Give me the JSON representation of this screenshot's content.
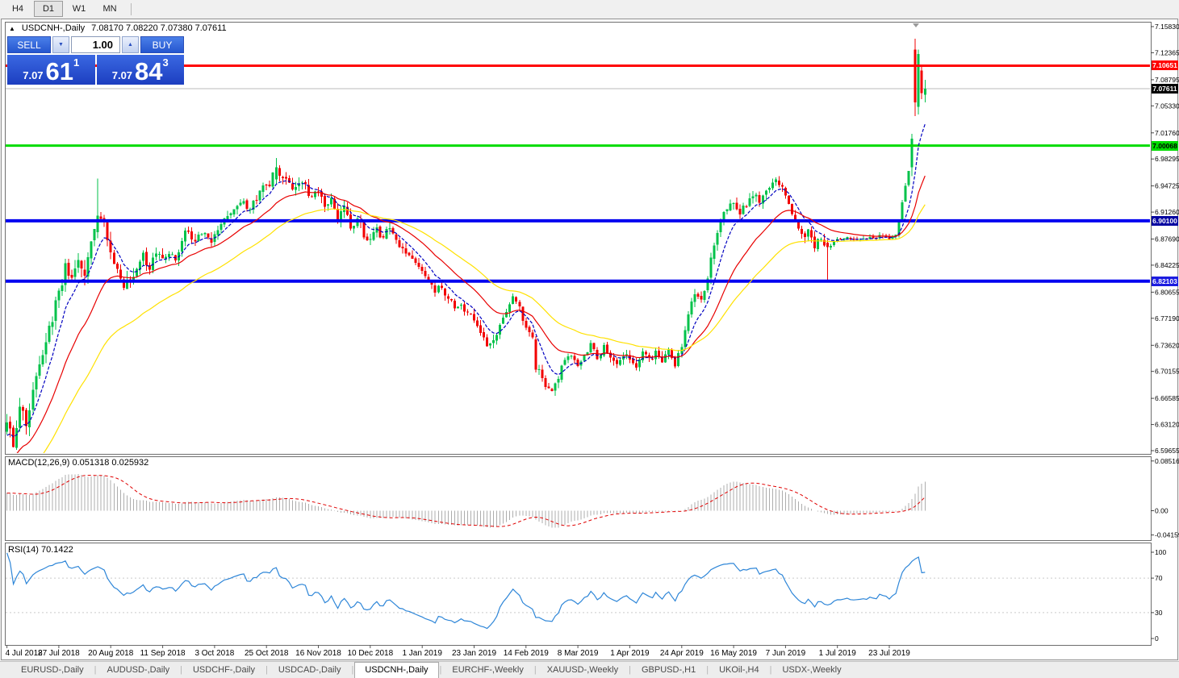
{
  "toolbar": {
    "timeframes": [
      {
        "label": "H4",
        "active": false
      },
      {
        "label": "D1",
        "active": true
      },
      {
        "label": "W1",
        "active": false
      },
      {
        "label": "MN",
        "active": false
      }
    ]
  },
  "chart": {
    "collapse_icon": "▲",
    "title_symbol": "USDCNH-,Daily",
    "title_ohlc": "7.08170 7.08220 7.07380 7.07611"
  },
  "trade_panel": {
    "sell_label": "SELL",
    "buy_label": "BUY",
    "volume": "1.00",
    "spin_down_icon": "▼",
    "spin_up_icon": "▲",
    "sell_price": {
      "main": "7.07",
      "big": "61",
      "sup": "1"
    },
    "buy_price": {
      "main": "7.07",
      "big": "84",
      "sup": "3"
    }
  },
  "indicators": {
    "macd_label": "MACD(12,26,9) 0.051318 0.025932",
    "rsi_label": "RSI(14) 70.1422"
  },
  "price_axis": {
    "labels": [
      "7.15830",
      "7.12365",
      "7.08795",
      "7.05330",
      "7.01760",
      "6.98295",
      "6.94725",
      "6.91260",
      "6.87690",
      "6.84225",
      "6.80655",
      "6.77190",
      "6.73620",
      "6.70155",
      "6.66585",
      "6.63120",
      "6.59655"
    ],
    "badges": [
      {
        "value": "7.10651",
        "bg": "#FF0000",
        "fg": "#FFFFFF"
      },
      {
        "value": "7.07611",
        "bg": "#000000",
        "fg": "#FFFFFF"
      },
      {
        "value": "7.00068",
        "bg": "#00DC00",
        "fg": "#000000"
      },
      {
        "value": "6.90100",
        "bg": "#0000A0",
        "fg": "#FFFFFF"
      },
      {
        "value": "6.82103",
        "bg": "#1C1CE0",
        "fg": "#FFFFFF"
      }
    ]
  },
  "macd_axis": {
    "labels": [
      "0.085164",
      "0.00",
      "-0.04159"
    ]
  },
  "rsi_axis": {
    "labels": [
      "100",
      "70",
      "30",
      "0"
    ]
  },
  "date_axis": {
    "labels": [
      {
        "i": 0,
        "t": "4 Jul 2018"
      },
      {
        "i": 16,
        "t": "27 Jul 2018"
      },
      {
        "i": 32,
        "t": "20 Aug 2018"
      },
      {
        "i": 48,
        "t": "11 Sep 2018"
      },
      {
        "i": 64,
        "t": "3 Oct 2018"
      },
      {
        "i": 80,
        "t": "25 Oct 2018"
      },
      {
        "i": 96,
        "t": "16 Nov 2018"
      },
      {
        "i": 112,
        "t": "10 Dec 2018"
      },
      {
        "i": 128,
        "t": "1 Jan 2019"
      },
      {
        "i": 144,
        "t": "23 Jan 2019"
      },
      {
        "i": 160,
        "t": "14 Feb 2019"
      },
      {
        "i": 176,
        "t": "8 Mar 2019"
      },
      {
        "i": 192,
        "t": "1 Apr 2019"
      },
      {
        "i": 208,
        "t": "24 Apr 2019"
      },
      {
        "i": 224,
        "t": "16 May 2019"
      },
      {
        "i": 240,
        "t": "7 Jun 2019"
      },
      {
        "i": 256,
        "t": "1 Jul 2019"
      },
      {
        "i": 272,
        "t": "23 Jul 2019"
      }
    ]
  },
  "tabs": [
    {
      "label": "EURUSD-,Daily",
      "active": false
    },
    {
      "label": "AUDUSD-,Daily",
      "active": false
    },
    {
      "label": "USDCHF-,Daily",
      "active": false
    },
    {
      "label": "USDCAD-,Daily",
      "active": false
    },
    {
      "label": "USDCNH-,Daily",
      "active": true
    },
    {
      "label": "EURCHF-,Weekly",
      "active": false
    },
    {
      "label": "XAUUSD-,Weekly",
      "active": false
    },
    {
      "label": "GBPUSD-,H1",
      "active": false
    },
    {
      "label": "UKOil-,H4",
      "active": false
    },
    {
      "label": "USDX-,Weekly",
      "active": false
    }
  ],
  "chart_data": {
    "type": "candlestick",
    "title": "USDCNH-,Daily",
    "timeframe": "Daily",
    "y_axis": {
      "min": 6.59655,
      "max": 7.1583
    },
    "n_candles": 284,
    "candle_up_color": "#00C24A",
    "candle_down_color": "#F20000",
    "current_price": 7.07611,
    "current_price_line_color": "#BBBBBB",
    "levels": [
      {
        "price": 7.10651,
        "color": "#FF0000",
        "width": 3
      },
      {
        "price": 7.00068,
        "color": "#00DC00",
        "width": 3
      },
      {
        "price": 6.901,
        "color": "#0000F0",
        "width": 4
      },
      {
        "price": 6.82103,
        "color": "#0000F0",
        "width": 4
      }
    ],
    "moving_averages": [
      {
        "period": 8,
        "type": "ema",
        "color": "#0000C0",
        "dash": "4 2"
      },
      {
        "period": 22,
        "type": "ema",
        "color": "#E80000",
        "dash": ""
      },
      {
        "period": 45,
        "type": "ema",
        "color": "#FFE100",
        "dash": ""
      }
    ],
    "macd": {
      "fast": 12,
      "slow": 26,
      "signal": 9,
      "value": 0.051318,
      "signal_value": 0.025932,
      "hist_color": "#ADADAD",
      "signal_color": "#E00000",
      "range": [
        -0.04159,
        0.085164
      ]
    },
    "rsi": {
      "period": 14,
      "value": 70.1422,
      "color": "#2E86D8",
      "levels": [
        70,
        30
      ]
    },
    "close_anchors": [
      [
        0,
        6.64
      ],
      [
        2,
        6.606
      ],
      [
        4,
        6.662
      ],
      [
        6,
        6.634
      ],
      [
        9,
        6.69
      ],
      [
        12,
        6.745
      ],
      [
        14,
        6.775
      ],
      [
        16,
        6.802
      ],
      [
        18,
        6.838
      ],
      [
        20,
        6.822
      ],
      [
        22,
        6.852
      ],
      [
        24,
        6.834
      ],
      [
        26,
        6.87
      ],
      [
        28,
        6.905
      ],
      [
        30,
        6.893
      ],
      [
        32,
        6.86
      ],
      [
        34,
        6.838
      ],
      [
        36,
        6.812
      ],
      [
        38,
        6.824
      ],
      [
        40,
        6.842
      ],
      [
        42,
        6.856
      ],
      [
        44,
        6.836
      ],
      [
        46,
        6.858
      ],
      [
        48,
        6.846
      ],
      [
        50,
        6.862
      ],
      [
        52,
        6.848
      ],
      [
        54,
        6.876
      ],
      [
        56,
        6.89
      ],
      [
        58,
        6.872
      ],
      [
        60,
        6.888
      ],
      [
        63,
        6.872
      ],
      [
        66,
        6.902
      ],
      [
        69,
        6.916
      ],
      [
        72,
        6.928
      ],
      [
        75,
        6.918
      ],
      [
        78,
        6.938
      ],
      [
        81,
        6.952
      ],
      [
        83,
        6.97
      ],
      [
        85,
        6.958
      ],
      [
        88,
        6.944
      ],
      [
        91,
        6.956
      ],
      [
        93,
        6.934
      ],
      [
        96,
        6.942
      ],
      [
        98,
        6.918
      ],
      [
        100,
        6.93
      ],
      [
        102,
        6.902
      ],
      [
        104,
        6.916
      ],
      [
        106,
        6.892
      ],
      [
        108,
        6.906
      ],
      [
        110,
        6.884
      ],
      [
        112,
        6.876
      ],
      [
        114,
        6.888
      ],
      [
        116,
        6.88
      ],
      [
        118,
        6.892
      ],
      [
        120,
        6.878
      ],
      [
        122,
        6.862
      ],
      [
        124,
        6.856
      ],
      [
        126,
        6.844
      ],
      [
        128,
        6.836
      ],
      [
        130,
        6.824
      ],
      [
        132,
        6.806
      ],
      [
        134,
        6.816
      ],
      [
        136,
        6.796
      ],
      [
        138,
        6.786
      ],
      [
        140,
        6.794
      ],
      [
        142,
        6.776
      ],
      [
        144,
        6.772
      ],
      [
        146,
        6.752
      ],
      [
        148,
        6.734
      ],
      [
        150,
        6.742
      ],
      [
        152,
        6.76
      ],
      [
        154,
        6.782
      ],
      [
        156,
        6.8
      ],
      [
        158,
        6.788
      ],
      [
        160,
        6.758
      ],
      [
        162,
        6.742
      ],
      [
        164,
        6.706
      ],
      [
        166,
        6.678
      ],
      [
        168,
        6.672
      ],
      [
        170,
        6.696
      ],
      [
        172,
        6.714
      ],
      [
        174,
        6.722
      ],
      [
        176,
        6.712
      ],
      [
        178,
        6.726
      ],
      [
        180,
        6.736
      ],
      [
        182,
        6.72
      ],
      [
        184,
        6.732
      ],
      [
        186,
        6.722
      ],
      [
        188,
        6.714
      ],
      [
        190,
        6.722
      ],
      [
        192,
        6.718
      ],
      [
        194,
        6.708
      ],
      [
        196,
        6.726
      ],
      [
        198,
        6.716
      ],
      [
        200,
        6.728
      ],
      [
        202,
        6.714
      ],
      [
        204,
        6.728
      ],
      [
        206,
        6.708
      ],
      [
        208,
        6.734
      ],
      [
        210,
        6.774
      ],
      [
        212,
        6.806
      ],
      [
        214,
        6.792
      ],
      [
        216,
        6.826
      ],
      [
        218,
        6.868
      ],
      [
        220,
        6.898
      ],
      [
        222,
        6.918
      ],
      [
        224,
        6.928
      ],
      [
        226,
        6.912
      ],
      [
        228,
        6.924
      ],
      [
        230,
        6.936
      ],
      [
        232,
        6.928
      ],
      [
        234,
        6.944
      ],
      [
        237,
        6.956
      ],
      [
        239,
        6.944
      ],
      [
        241,
        6.928
      ],
      [
        243,
        6.898
      ],
      [
        245,
        6.88
      ],
      [
        247,
        6.886
      ],
      [
        249,
        6.868
      ],
      [
        251,
        6.88
      ],
      [
        253,
        6.866
      ],
      [
        255,
        6.874
      ],
      [
        258,
        6.88
      ],
      [
        261,
        6.874
      ],
      [
        264,
        6.88
      ],
      [
        267,
        6.876
      ],
      [
        270,
        6.882
      ],
      [
        272,
        6.878
      ],
      [
        274,
        6.885
      ],
      [
        275,
        6.9
      ],
      [
        276,
        6.925
      ],
      [
        277,
        6.948
      ],
      [
        278,
        6.968
      ],
      [
        279,
        7.01
      ],
      [
        280,
        7.058
      ],
      [
        281,
        7.122
      ],
      [
        282,
        7.07
      ],
      [
        283,
        7.076
      ]
    ],
    "explicit_candles": {
      "28": [
        6.886,
        6.957,
        6.878,
        6.908
      ],
      "83": [
        6.956,
        6.984,
        6.95,
        6.972
      ],
      "163": [
        6.744,
        6.748,
        6.7,
        6.704
      ],
      "253": [
        6.872,
        6.876,
        6.822,
        6.866
      ],
      "279": [
        6.972,
        7.016,
        6.96,
        7.01
      ],
      "280": [
        7.128,
        7.1425,
        7.04,
        7.058
      ],
      "281": [
        7.052,
        7.128,
        7.042,
        7.122
      ],
      "282": [
        7.1,
        7.108,
        7.062,
        7.07
      ],
      "283": [
        7.068,
        7.088,
        7.058,
        7.076
      ]
    }
  }
}
